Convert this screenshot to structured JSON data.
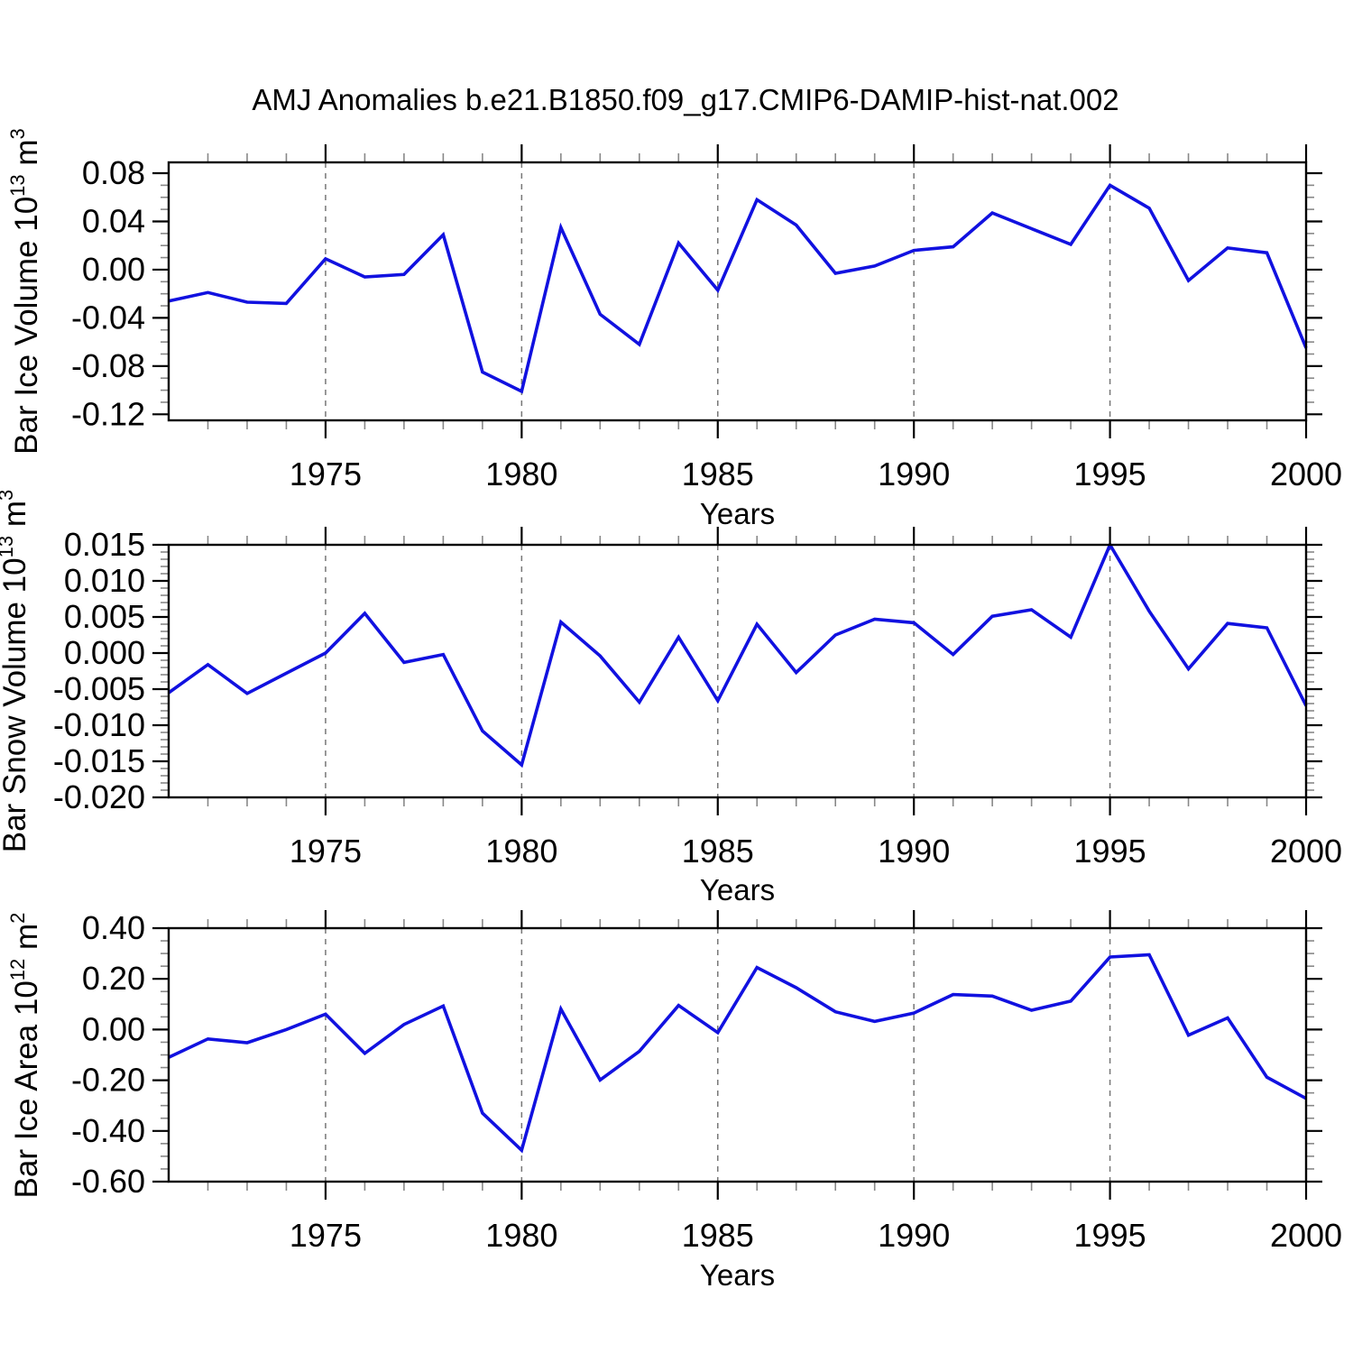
{
  "title": "AMJ Anomalies b.e21.B1850.f09_g17.CMIP6-DAMIP-hist-nat.002",
  "line_color": "#1111e0",
  "x_axis": {
    "label": "Years",
    "start_year": 1971,
    "end_year": 2000,
    "major_ticks": [
      {
        "year": 1975,
        "label": "1975"
      },
      {
        "year": 1980,
        "label": "1980"
      },
      {
        "year": 1985,
        "label": "1985"
      },
      {
        "year": 1990,
        "label": "1990"
      },
      {
        "year": 1995,
        "label": "1995"
      },
      {
        "year": 2000,
        "label": "2000"
      }
    ],
    "grid_years": [
      1975,
      1980,
      1985,
      1990,
      1995
    ]
  },
  "chart_data": [
    {
      "type": "line",
      "series_name": "bar-ice-volume-anomaly",
      "ylabel": {
        "prefix": "Bar Ice Volume 10",
        "exponent": "13",
        "unit": " m",
        "unit_exponent": "3"
      },
      "ylim": [
        -0.125,
        0.089
      ],
      "y_minor_step": 0.01,
      "yticks": [
        {
          "value": 0.08,
          "label": "0.08"
        },
        {
          "value": 0.04,
          "label": "0.04"
        },
        {
          "value": 0.0,
          "label": "0.00"
        },
        {
          "value": -0.04,
          "label": "-0.04"
        },
        {
          "value": -0.08,
          "label": "-0.08"
        },
        {
          "value": -0.12,
          "label": "-0.12"
        }
      ],
      "x": [
        1971,
        1972,
        1973,
        1974,
        1975,
        1976,
        1977,
        1978,
        1979,
        1980,
        1981,
        1982,
        1983,
        1984,
        1985,
        1986,
        1987,
        1988,
        1989,
        1990,
        1991,
        1992,
        1993,
        1994,
        1995,
        1996,
        1997,
        1998,
        1999,
        2000
      ],
      "values": [
        -0.026,
        -0.019,
        -0.027,
        -0.028,
        0.009,
        -0.006,
        -0.004,
        0.029,
        -0.085,
        -0.101,
        0.035,
        -0.037,
        -0.062,
        0.022,
        -0.017,
        0.058,
        0.037,
        -0.003,
        0.003,
        0.016,
        0.019,
        0.047,
        0.034,
        0.021,
        0.07,
        0.051,
        -0.009,
        0.018,
        0.014,
        -0.065
      ]
    },
    {
      "type": "line",
      "series_name": "bar-snow-volume-anomaly",
      "ylabel": {
        "prefix": "Bar Snow Volume 10",
        "exponent": "13",
        "unit": " m",
        "unit_exponent": "3"
      },
      "ylim": [
        -0.02,
        0.015
      ],
      "y_minor_step": 0.001,
      "yticks": [
        {
          "value": 0.015,
          "label": "0.015"
        },
        {
          "value": 0.01,
          "label": "0.010"
        },
        {
          "value": 0.005,
          "label": "0.005"
        },
        {
          "value": 0.0,
          "label": "0.000"
        },
        {
          "value": -0.005,
          "label": "-0.005"
        },
        {
          "value": -0.01,
          "label": "-0.010"
        },
        {
          "value": -0.015,
          "label": "-0.015"
        },
        {
          "value": -0.02,
          "label": "-0.020"
        }
      ],
      "x": [
        1971,
        1972,
        1973,
        1974,
        1975,
        1976,
        1977,
        1978,
        1979,
        1980,
        1981,
        1982,
        1983,
        1984,
        1985,
        1986,
        1987,
        1988,
        1989,
        1990,
        1991,
        1992,
        1993,
        1994,
        1995,
        1996,
        1997,
        1998,
        1999,
        2000
      ],
      "values": [
        -0.0055,
        -0.0016,
        -0.0056,
        -0.0028,
        0.0,
        0.0055,
        -0.0013,
        -0.0002,
        -0.0108,
        -0.0155,
        0.0043,
        -0.0004,
        -0.0068,
        0.0022,
        -0.0066,
        0.004,
        -0.0027,
        0.0025,
        0.0047,
        0.0042,
        -0.0002,
        0.0051,
        0.006,
        0.0022,
        0.015,
        0.0058,
        -0.0022,
        0.0041,
        0.0035,
        -0.0073
      ]
    },
    {
      "type": "line",
      "series_name": "bar-ice-area-anomaly",
      "ylabel": {
        "prefix": "Bar Ice Area 10",
        "exponent": "12",
        "unit": " m",
        "unit_exponent": "2"
      },
      "ylim": [
        -0.6,
        0.4
      ],
      "y_minor_step": 0.05,
      "yticks": [
        {
          "value": 0.4,
          "label": "0.40"
        },
        {
          "value": 0.2,
          "label": "0.20"
        },
        {
          "value": 0.0,
          "label": "0.00"
        },
        {
          "value": -0.2,
          "label": "-0.20"
        },
        {
          "value": -0.4,
          "label": "-0.40"
        },
        {
          "value": -0.6,
          "label": "-0.60"
        }
      ],
      "x": [
        1971,
        1972,
        1973,
        1974,
        1975,
        1976,
        1977,
        1978,
        1979,
        1980,
        1981,
        1982,
        1983,
        1984,
        1985,
        1986,
        1987,
        1988,
        1989,
        1990,
        1991,
        1992,
        1993,
        1994,
        1995,
        1996,
        1997,
        1998,
        1999,
        2000
      ],
      "values": [
        -0.11,
        -0.037,
        -0.052,
        0.0,
        0.061,
        -0.094,
        0.02,
        0.093,
        -0.33,
        -0.476,
        0.081,
        -0.199,
        -0.086,
        0.095,
        -0.012,
        0.245,
        0.165,
        0.07,
        0.032,
        0.065,
        0.138,
        0.132,
        0.076,
        0.112,
        0.286,
        0.295,
        -0.022,
        0.046,
        -0.188,
        -0.272
      ]
    }
  ]
}
